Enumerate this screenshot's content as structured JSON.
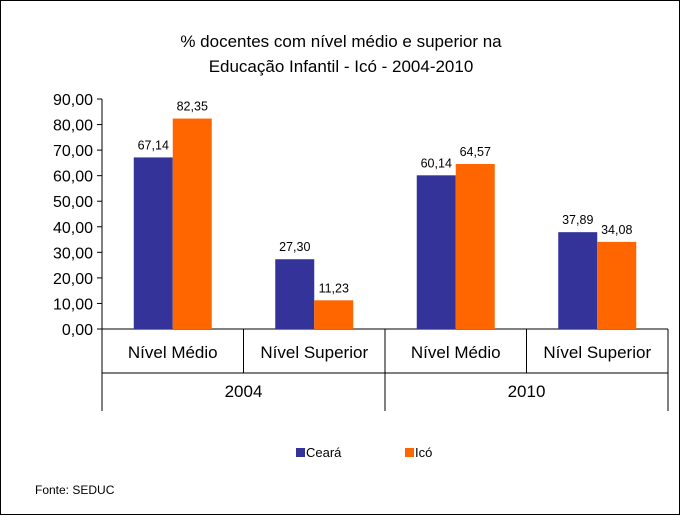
{
  "chart_data": {
    "type": "bar",
    "title_lines": [
      "% docentes com nível médio e superior na",
      "Educação Infantil - Icó  - 2004-2010"
    ],
    "groups": [
      {
        "label": "2004",
        "categories": [
          "Nível Médio",
          "Nível Superior"
        ]
      },
      {
        "label": "2010",
        "categories": [
          "Nível Médio",
          "Nível Superior"
        ]
      }
    ],
    "categories": [
      "Nível Médio",
      "Nível Superior",
      "Nível Médio",
      "Nível Superior"
    ],
    "series": [
      {
        "name": "Ceará",
        "color": "#333399",
        "values": [
          67.14,
          27.3,
          60.14,
          37.89
        ],
        "labels": [
          "67,14",
          "27,30",
          "60,14",
          "37,89"
        ]
      },
      {
        "name": "Icó",
        "color": "#FF6600",
        "values": [
          82.35,
          11.23,
          64.57,
          34.08
        ],
        "labels": [
          "82,35",
          "11,23",
          "64,57",
          "34,08"
        ]
      }
    ],
    "ylim": [
      0,
      90
    ],
    "yticks": [
      "0,00",
      "10,00",
      "20,00",
      "30,00",
      "40,00",
      "50,00",
      "60,00",
      "70,00",
      "80,00",
      "90,00"
    ],
    "legend_position": "bottom",
    "grid": false
  },
  "source": "Fonte: SEDUC"
}
